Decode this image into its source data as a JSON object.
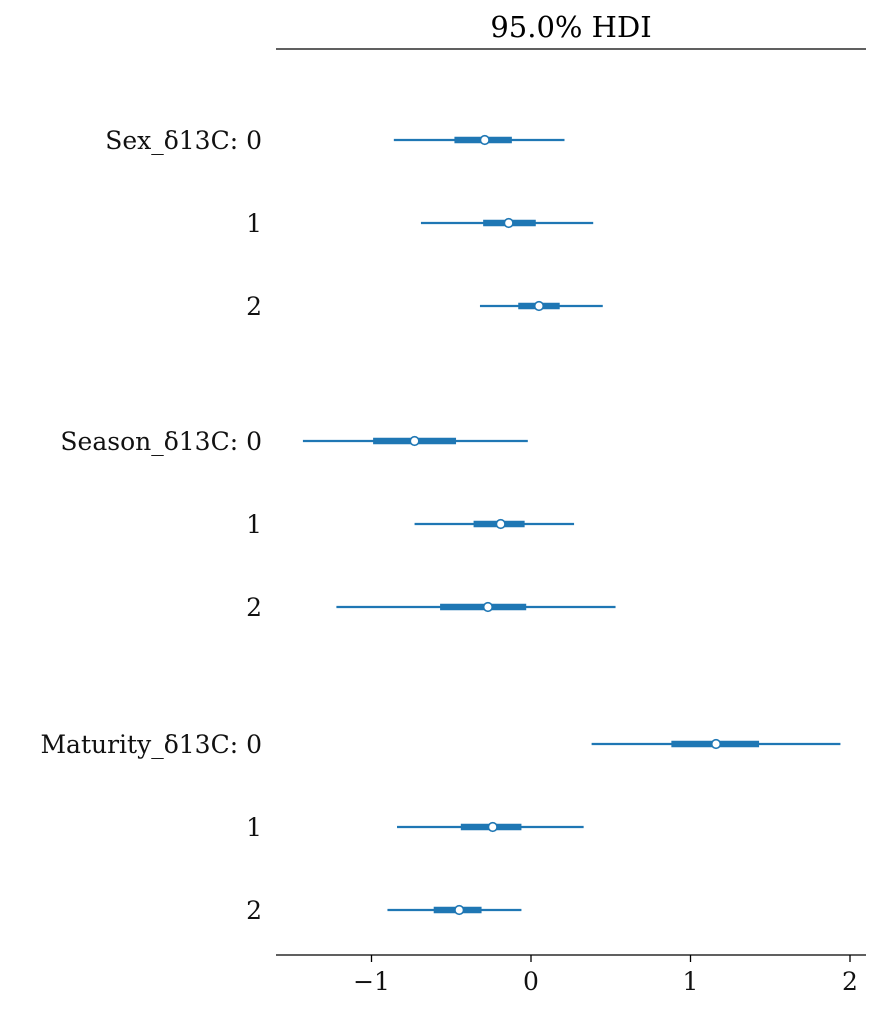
{
  "chart_data": {
    "type": "forest",
    "title": "95.0% HDI",
    "xlim": [
      -1.6,
      2.1
    ],
    "xticks": [
      -1,
      0,
      1,
      2
    ],
    "xtick_labels": [
      "−1",
      "0",
      "1",
      "2"
    ],
    "color": "#1f77b4",
    "groups": [
      {
        "name": "Sex_δ13C",
        "rows": [
          {
            "label": "0",
            "mean": -0.29,
            "hdi": [
              -0.86,
              0.21
            ],
            "iqr": [
              -0.48,
              -0.12
            ]
          },
          {
            "label": "1",
            "mean": -0.14,
            "hdi": [
              -0.69,
              0.39
            ],
            "iqr": [
              -0.3,
              0.03
            ]
          },
          {
            "label": "2",
            "mean": 0.05,
            "hdi": [
              -0.32,
              0.45
            ],
            "iqr": [
              -0.08,
              0.18
            ]
          }
        ]
      },
      {
        "name": "Season_δ13C",
        "rows": [
          {
            "label": "0",
            "mean": -0.73,
            "hdi": [
              -1.43,
              -0.02
            ],
            "iqr": [
              -0.99,
              -0.47
            ]
          },
          {
            "label": "1",
            "mean": -0.19,
            "hdi": [
              -0.73,
              0.27
            ],
            "iqr": [
              -0.36,
              -0.04
            ]
          },
          {
            "label": "2",
            "mean": -0.27,
            "hdi": [
              -1.22,
              0.53
            ],
            "iqr": [
              -0.57,
              -0.03
            ]
          }
        ]
      },
      {
        "name": "Maturity_δ13C",
        "rows": [
          {
            "label": "0",
            "mean": 1.16,
            "hdi": [
              0.38,
              1.94
            ],
            "iqr": [
              0.88,
              1.43
            ]
          },
          {
            "label": "1",
            "mean": -0.24,
            "hdi": [
              -0.84,
              0.33
            ],
            "iqr": [
              -0.44,
              -0.06
            ]
          },
          {
            "label": "2",
            "mean": -0.45,
            "hdi": [
              -0.9,
              -0.06
            ],
            "iqr": [
              -0.61,
              -0.31
            ]
          }
        ]
      }
    ]
  }
}
